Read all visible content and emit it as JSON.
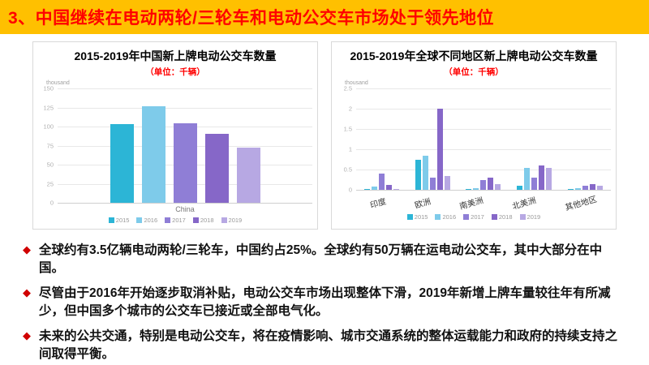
{
  "banner": {
    "title": "3、中国继续在电动两轮/三轮车和电动公交车市场处于领先地位"
  },
  "bullet_marker": "◆",
  "bullets": [
    "全球约有3.5亿辆电动两轮/三轮车，中国约占25%。全球约有50万辆在运电动公交车，其中大部分在中国。",
    "尽管由于2016年开始逐步取消补贴，电动公交车市场出现整体下滑，2019年新增上牌车量较往年有所减少，但中国多个城市的公交车已接近或全部电气化。",
    "未来的公共交通，特别是电动公交车，将在疫情影响、城市交通系统的整体运载能力和政府的持续支持之间取得平衡。"
  ],
  "colors": {
    "banner_bg": "#FFC000",
    "banner_text": "#FF0000",
    "unit_text": "#FF0000",
    "bullet_marker": "#D00000",
    "grid": "#e8e8e8",
    "series": [
      "#2CB5D6",
      "#7ECBEA",
      "#8F7ED6",
      "#8667C8",
      "#B7A8E3"
    ]
  },
  "chart_data": [
    {
      "type": "bar",
      "title": "2015-2019年中国新上牌电动公交车数量",
      "unit": "（单位：千辆）",
      "categories": [
        "China"
      ],
      "series": [
        {
          "name": "2015",
          "values": [
            103
          ]
        },
        {
          "name": "2016",
          "values": [
            127
          ]
        },
        {
          "name": "2017",
          "values": [
            104
          ]
        },
        {
          "name": "2018",
          "values": [
            90
          ]
        },
        {
          "name": "2019",
          "values": [
            72
          ]
        }
      ],
      "xlabel": "",
      "ylabel": "thousand",
      "ylim": [
        0,
        150
      ],
      "yticks": [
        0,
        25,
        50,
        75,
        100,
        125,
        150
      ],
      "grid": true,
      "legend_position": "bottom"
    },
    {
      "type": "bar",
      "title": "2015-2019年全球不同地区新上牌电动公交车数量",
      "unit": "（单位：千辆）",
      "categories": [
        "印度",
        "欧洲",
        "南美洲",
        "北美洲",
        "其他地区"
      ],
      "series": [
        {
          "name": "2015",
          "values": [
            0.03,
            0.75,
            0.02,
            0.1,
            0.03
          ]
        },
        {
          "name": "2016",
          "values": [
            0.08,
            0.85,
            0.05,
            0.55,
            0.05
          ]
        },
        {
          "name": "2017",
          "values": [
            0.4,
            0.3,
            0.25,
            0.3,
            0.1
          ]
        },
        {
          "name": "2018",
          "values": [
            0.12,
            2.0,
            0.3,
            0.6,
            0.15
          ]
        },
        {
          "name": "2019",
          "values": [
            0.03,
            0.35,
            0.15,
            0.55,
            0.1
          ]
        }
      ],
      "xlabel": "",
      "ylabel": "thousand",
      "ylim": [
        0,
        2.5
      ],
      "yticks": [
        0,
        0.5,
        1,
        1.5,
        2,
        2.5
      ],
      "grid": true,
      "legend_position": "bottom"
    }
  ]
}
